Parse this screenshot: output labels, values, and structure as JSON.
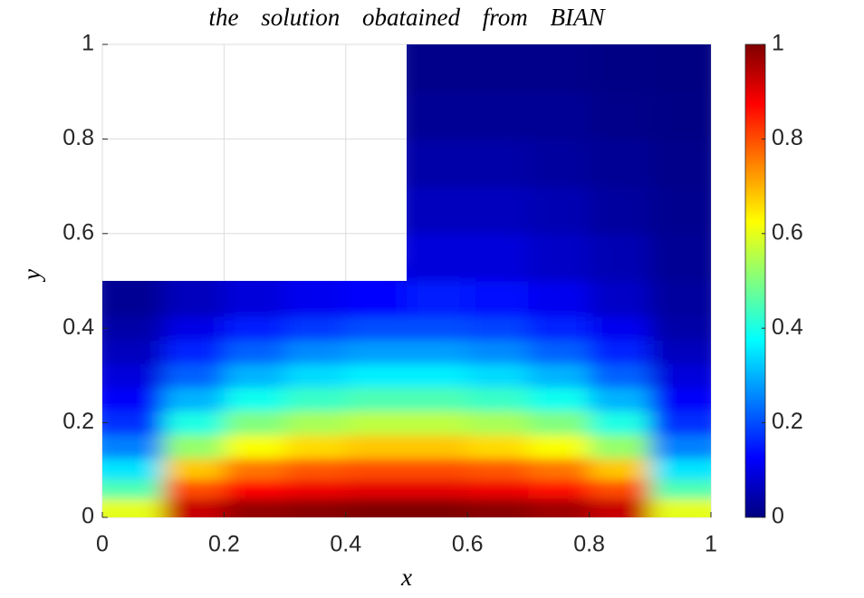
{
  "chart_data": {
    "type": "heatmap",
    "title": "the solution obatained from BIAN",
    "xlabel": "x",
    "ylabel": "y",
    "x": [
      0.05,
      0.15,
      0.25,
      0.35,
      0.45,
      0.55,
      0.65,
      0.75,
      0.85,
      0.95
    ],
    "y": [
      0.02,
      0.06,
      0.1,
      0.15,
      0.2,
      0.25,
      0.3,
      0.35,
      0.4,
      0.45,
      0.55,
      0.65,
      0.75,
      0.85,
      0.95
    ],
    "z": [
      [
        0.6,
        0.93,
        0.98,
        0.99,
        1,
        1,
        0.99,
        0.97,
        0.93,
        0.6
      ],
      [
        0.45,
        0.8,
        0.87,
        0.89,
        0.9,
        0.9,
        0.89,
        0.86,
        0.8,
        0.45
      ],
      [
        0.35,
        0.68,
        0.76,
        0.79,
        0.8,
        0.8,
        0.79,
        0.76,
        0.68,
        0.35
      ],
      [
        0.25,
        0.52,
        0.62,
        0.66,
        0.68,
        0.68,
        0.66,
        0.62,
        0.52,
        0.25
      ],
      [
        0.17,
        0.4,
        0.5,
        0.54,
        0.56,
        0.56,
        0.54,
        0.5,
        0.4,
        0.17
      ],
      [
        0.12,
        0.3,
        0.39,
        0.43,
        0.45,
        0.45,
        0.43,
        0.39,
        0.3,
        0.12
      ],
      [
        0.09,
        0.22,
        0.3,
        0.34,
        0.36,
        0.36,
        0.34,
        0.3,
        0.22,
        0.09
      ],
      [
        0.06,
        0.16,
        0.22,
        0.26,
        0.28,
        0.28,
        0.26,
        0.22,
        0.16,
        0.06
      ],
      [
        0.04,
        0.1,
        0.15,
        0.18,
        0.2,
        0.2,
        0.19,
        0.16,
        0.11,
        0.04
      ],
      [
        0.02,
        0.06,
        0.09,
        0.11,
        0.13,
        0.15,
        0.14,
        0.11,
        0.07,
        0.03
      ],
      [
        null,
        null,
        null,
        null,
        null,
        0.09,
        0.09,
        0.07,
        0.05,
        0.02
      ],
      [
        null,
        null,
        null,
        null,
        null,
        0.06,
        0.06,
        0.05,
        0.03,
        0.015
      ],
      [
        null,
        null,
        null,
        null,
        null,
        0.04,
        0.04,
        0.03,
        0.02,
        0.01
      ],
      [
        null,
        null,
        null,
        null,
        null,
        0.02,
        0.02,
        0.02,
        0.01,
        0.005
      ],
      [
        null,
        null,
        null,
        null,
        null,
        0.01,
        0.01,
        0.01,
        0.005,
        0.002
      ]
    ],
    "colormap": "jet",
    "xlim": [
      0,
      1
    ],
    "ylim": [
      0,
      1
    ],
    "clim": [
      0,
      1
    ],
    "xticks": [
      0,
      0.2,
      0.4,
      0.6,
      0.8,
      1
    ],
    "yticks": [
      0,
      0.2,
      0.4,
      0.6,
      0.8,
      1
    ],
    "cticks": [
      0,
      0.2,
      0.4,
      0.6,
      0.8,
      1
    ],
    "grid": true
  }
}
